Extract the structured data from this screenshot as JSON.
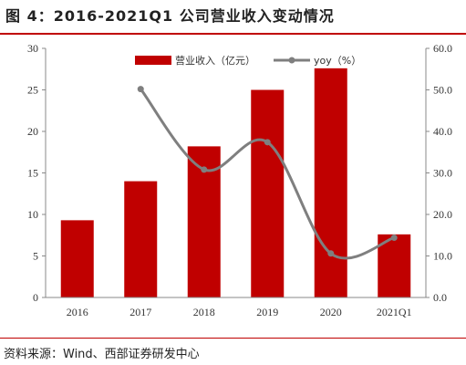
{
  "title": "图 4：2016-2021Q1 公司营业收入变动情况",
  "source": "资料来源：Wind、西部证券研发中心",
  "colors": {
    "bar": "#c00000",
    "line": "#7f7f7f",
    "axis": "#888888"
  },
  "chart_data": {
    "type": "bar",
    "categories": [
      "2016",
      "2017",
      "2018",
      "2019",
      "2020",
      "2021Q1"
    ],
    "series": [
      {
        "name": "营业收入（亿元）",
        "type": "bar",
        "axis": "left",
        "values": [
          9.3,
          14.0,
          18.2,
          25.0,
          27.6,
          7.6
        ]
      },
      {
        "name": "yoy（%）",
        "type": "line",
        "axis": "right",
        "values": [
          null,
          50.2,
          30.8,
          37.4,
          10.6,
          14.4
        ]
      }
    ],
    "y_left": {
      "ylim": [
        0,
        30
      ],
      "ticks": [
        "0",
        "5",
        "10",
        "15",
        "20",
        "25",
        "30"
      ]
    },
    "y_right": {
      "ylim": [
        0,
        60
      ],
      "ticks": [
        "0.0",
        "10.0",
        "20.0",
        "30.0",
        "40.0",
        "50.0",
        "60.0"
      ]
    },
    "legend_position": "top-center",
    "grid": false
  }
}
